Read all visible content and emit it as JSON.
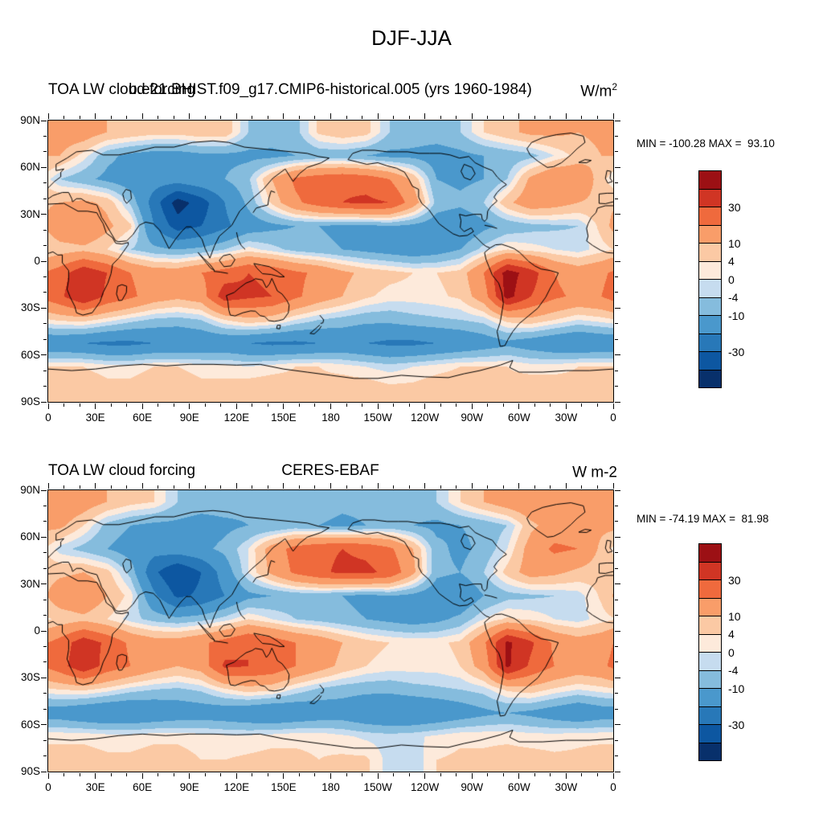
{
  "figure": {
    "title": "DJF-JJA",
    "panels": [
      {
        "title_left": "TOA LW cloud forcing",
        "title_center": "b.e21.BHIST.f09_g17.CMIP6-historical.005 (yrs 1960-1984)",
        "units_base": "W/m",
        "units_sup": "2",
        "stats": "MIN = -100.28 MAX =  93.10"
      },
      {
        "title_left": "TOA LW cloud forcing",
        "title_center": "CERES-EBAF",
        "units_base": "W m-2",
        "units_sup": "",
        "stats": "MIN = -74.19 MAX =  81.98"
      }
    ]
  },
  "axes": {
    "x_ticks": [
      "0",
      "30E",
      "60E",
      "90E",
      "120E",
      "150E",
      "180",
      "150W",
      "120W",
      "90W",
      "60W",
      "30W",
      "0"
    ],
    "x_tick_lons": [
      0,
      30,
      60,
      90,
      120,
      150,
      180,
      210,
      240,
      270,
      300,
      330,
      360
    ],
    "y_ticks": [
      "90N",
      "60N",
      "30N",
      "0",
      "30S",
      "60S",
      "90S"
    ],
    "y_tick_lats": [
      90,
      60,
      30,
      0,
      -30,
      -60,
      -90
    ]
  },
  "colorbar": {
    "levels": [
      -40,
      -30,
      -20,
      -10,
      -4,
      0,
      4,
      10,
      20,
      30,
      40
    ],
    "colors": [
      "#08306b",
      "#0d57a1",
      "#2878b8",
      "#4a98cc",
      "#85bcdd",
      "#c6dcef",
      "#fdeadb",
      "#fbc9a4",
      "#f99d69",
      "#ef6a3d",
      "#d03524",
      "#9c1014"
    ],
    "labels": [
      "30",
      "10",
      "4",
      "0",
      "-4",
      "-10",
      "-30"
    ],
    "label_boundary_indices": [
      2,
      4,
      5,
      6,
      7,
      8,
      10
    ]
  },
  "chart_data": [
    {
      "type": "filled_contour_map",
      "title": "TOA LW cloud forcing, b.e21.BHIST.f09_g17.CMIP6-historical.005 (yrs 1960-1984), DJF-JJA",
      "units": "W/m2",
      "min": -100.28,
      "max": 93.1,
      "contour_levels": [
        -40,
        -30,
        -20,
        -10,
        -4,
        0,
        4,
        10,
        20,
        30,
        40
      ],
      "lon_start": 7.5,
      "lon_step": 15,
      "lat_start": 82.5,
      "lat_step": -15,
      "values": [
        [
          15,
          15,
          10,
          8,
          6,
          6,
          8,
          8,
          -4,
          -6,
          -6,
          5,
          8,
          6,
          -4,
          -6,
          -6,
          -4,
          4,
          8,
          12,
          12,
          10,
          12
        ],
        [
          10,
          2,
          -8,
          -12,
          -14,
          -14,
          -12,
          -12,
          -12,
          -12,
          -10,
          -8,
          -8,
          -10,
          -12,
          -12,
          -14,
          -12,
          -10,
          -8,
          -6,
          0,
          6,
          10
        ],
        [
          -4,
          -8,
          -12,
          -15,
          -15,
          -15,
          -12,
          -10,
          -5,
          10,
          22,
          26,
          28,
          26,
          20,
          8,
          -10,
          -12,
          -10,
          -4,
          12,
          20,
          18,
          6
        ],
        [
          10,
          12,
          8,
          -5,
          -25,
          -45,
          -35,
          -20,
          -8,
          5,
          18,
          25,
          30,
          32,
          30,
          15,
          -6,
          -8,
          -4,
          8,
          16,
          14,
          10,
          8
        ],
        [
          18,
          20,
          12,
          5,
          -20,
          -35,
          -30,
          -22,
          -15,
          -12,
          -10,
          -10,
          -12,
          -12,
          -10,
          -12,
          -15,
          -18,
          -12,
          -8,
          -6,
          -5,
          -4,
          6
        ],
        [
          6,
          8,
          4,
          -4,
          -8,
          -10,
          -8,
          -4,
          2,
          -2,
          -6,
          -8,
          -10,
          -12,
          -14,
          -16,
          -14,
          -10,
          -2,
          4,
          2,
          0,
          -2,
          2
        ],
        [
          25,
          38,
          30,
          20,
          15,
          15,
          20,
          25,
          30,
          28,
          22,
          18,
          12,
          8,
          6,
          4,
          4,
          6,
          20,
          45,
          35,
          20,
          15,
          18
        ],
        [
          28,
          40,
          28,
          22,
          15,
          12,
          15,
          36,
          32,
          30,
          22,
          15,
          10,
          5,
          2,
          2,
          3,
          5,
          15,
          44,
          30,
          22,
          18,
          20
        ],
        [
          5,
          6,
          2,
          -2,
          -5,
          -6,
          -4,
          4,
          8,
          6,
          0,
          -4,
          -6,
          -8,
          -8,
          -6,
          -5,
          -4,
          -2,
          6,
          8,
          4,
          0,
          2
        ],
        [
          -18,
          -20,
          -22,
          -22,
          -20,
          -20,
          -18,
          -18,
          -20,
          -22,
          -22,
          -20,
          -18,
          -20,
          -22,
          -22,
          -20,
          -18,
          -15,
          -12,
          -15,
          -18,
          -20,
          -18
        ],
        [
          4,
          4,
          2,
          2,
          4,
          4,
          2,
          2,
          0,
          2,
          4,
          4,
          2,
          0,
          -2,
          0,
          2,
          4,
          4,
          4,
          2,
          2,
          4,
          4
        ],
        [
          8,
          8,
          6,
          6,
          8,
          8,
          6,
          6,
          8,
          8,
          6,
          6,
          8,
          8,
          6,
          6,
          8,
          8,
          6,
          6,
          8,
          8,
          6,
          6
        ]
      ]
    },
    {
      "type": "filled_contour_map",
      "title": "TOA LW cloud forcing, CERES-EBAF, DJF-JJA",
      "units": "W m-2",
      "min": -74.19,
      "max": 81.98,
      "contour_levels": [
        -40,
        -30,
        -20,
        -10,
        -4,
        0,
        4,
        10,
        20,
        30,
        40
      ],
      "lon_start": 7.5,
      "lon_step": 15,
      "lat_start": 82.5,
      "lat_step": -15,
      "values": [
        [
          18,
          15,
          10,
          6,
          4,
          -4,
          -6,
          -6,
          -8,
          -8,
          -6,
          -6,
          -8,
          -8,
          -8,
          -6,
          -4,
          4,
          10,
          15,
          18,
          18,
          15,
          18
        ],
        [
          12,
          4,
          -6,
          -10,
          -12,
          -12,
          -14,
          -12,
          -10,
          -10,
          -8,
          -10,
          -12,
          -10,
          -8,
          -10,
          -12,
          -10,
          -8,
          -4,
          8,
          14,
          14,
          12
        ],
        [
          -2,
          -6,
          -10,
          -14,
          -16,
          -14,
          -12,
          -8,
          0,
          14,
          24,
          28,
          30,
          28,
          22,
          10,
          -8,
          -12,
          -8,
          0,
          14,
          22,
          20,
          8
        ],
        [
          8,
          10,
          6,
          -6,
          -28,
          -40,
          -30,
          -15,
          0,
          12,
          22,
          28,
          32,
          32,
          28,
          12,
          -8,
          -10,
          -4,
          6,
          14,
          12,
          8,
          6
        ],
        [
          16,
          18,
          10,
          2,
          -18,
          -32,
          -28,
          -20,
          -12,
          -10,
          -8,
          -8,
          -10,
          -12,
          -10,
          -12,
          -16,
          -18,
          -10,
          -6,
          -5,
          -4,
          -2,
          5
        ],
        [
          5,
          8,
          4,
          -2,
          -6,
          -8,
          -6,
          -2,
          4,
          0,
          -4,
          -6,
          -8,
          -10,
          -12,
          -14,
          -12,
          -8,
          0,
          5,
          3,
          0,
          -2,
          2
        ],
        [
          24,
          36,
          28,
          18,
          14,
          14,
          18,
          24,
          30,
          26,
          20,
          16,
          10,
          6,
          4,
          3,
          3,
          5,
          18,
          42,
          32,
          18,
          14,
          16
        ],
        [
          26,
          38,
          26,
          20,
          14,
          10,
          14,
          32,
          30,
          28,
          20,
          14,
          8,
          4,
          2,
          2,
          2,
          4,
          14,
          42,
          28,
          20,
          16,
          18
        ],
        [
          4,
          5,
          2,
          -2,
          -4,
          -5,
          -3,
          3,
          7,
          5,
          -1,
          -5,
          -7,
          -8,
          -8,
          -6,
          -5,
          -4,
          -2,
          5,
          7,
          3,
          0,
          2
        ],
        [
          -15,
          -18,
          -20,
          -20,
          -18,
          -16,
          -15,
          -16,
          -18,
          -20,
          -18,
          -16,
          -15,
          -18,
          -20,
          -20,
          -18,
          -15,
          -12,
          -10,
          -12,
          -15,
          -18,
          -15
        ],
        [
          3,
          3,
          2,
          2,
          3,
          3,
          2,
          1,
          1,
          2,
          3,
          3,
          1,
          -1,
          -2,
          -1,
          1,
          3,
          3,
          3,
          2,
          2,
          3,
          3
        ],
        [
          6,
          6,
          5,
          5,
          6,
          6,
          4,
          4,
          5,
          6,
          5,
          4,
          5,
          5,
          -2,
          -3,
          4,
          5,
          5,
          6,
          6,
          5,
          5,
          6
        ]
      ]
    }
  ]
}
